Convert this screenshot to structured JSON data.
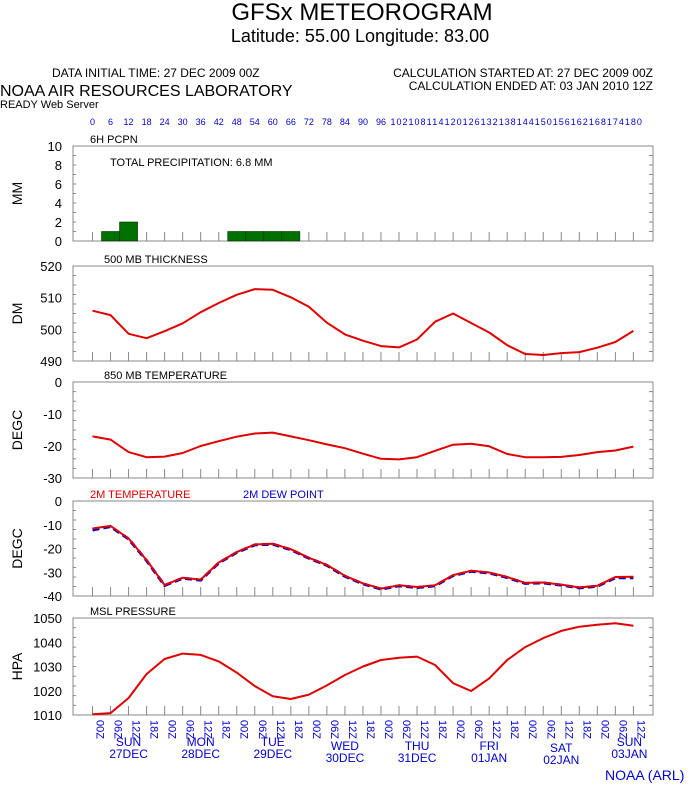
{
  "header": {
    "title": "GFSx METEOROGRAM",
    "location": "Latitude: 55.00 Longitude:  83.00",
    "data_initial_time": "DATA INITIAL TIME: 27 DEC 2009 00Z",
    "lab": "NOAA AIR RESOURCES LABORATORY",
    "server": "READY Web Server",
    "calc_started": "CALCULATION STARTED AT: 27 DEC 2009 00Z",
    "calc_ended": "CALCULATION ENDED AT: 03 JAN 2010 12Z",
    "footer": "NOAA (ARL)"
  },
  "colors": {
    "temp": "#e00000",
    "dew": "#0000cc",
    "precip": "#007000",
    "axis_label": "#0000cc"
  },
  "chart_data": {
    "type": "line",
    "forecast_hours": [
      0,
      6,
      12,
      18,
      24,
      30,
      36,
      42,
      48,
      54,
      60,
      66,
      72,
      78,
      84,
      90,
      96,
      102,
      108,
      114,
      120,
      126,
      132,
      138,
      144,
      150,
      156,
      162,
      168,
      174,
      180
    ],
    "hour_labels": [
      "0",
      "6",
      "12",
      "18",
      "24",
      "30",
      "36",
      "42",
      "48",
      "54",
      "60",
      "66",
      "72",
      "78",
      "84",
      "90",
      "96",
      "102",
      "108",
      "114",
      "120",
      "126",
      "132",
      "138",
      "144",
      "150",
      "156",
      "162",
      "168",
      "174",
      "180"
    ],
    "time_labels": [
      "00Z",
      "06Z",
      "12Z",
      "18Z",
      "00Z",
      "06Z",
      "12Z",
      "18Z",
      "00Z",
      "06Z",
      "12Z",
      "18Z",
      "00Z",
      "06Z",
      "12Z",
      "18Z",
      "00Z",
      "06Z",
      "12Z",
      "18Z",
      "00Z",
      "06Z",
      "12Z",
      "18Z",
      "00Z",
      "06Z",
      "12Z",
      "18Z",
      "00Z",
      "06Z",
      "12Z"
    ],
    "days": [
      {
        "dow": "SUN",
        "date": "27DEC"
      },
      {
        "dow": "MON",
        "date": "28DEC"
      },
      {
        "dow": "TUE",
        "date": "29DEC"
      },
      {
        "dow": "WED",
        "date": "30DEC"
      },
      {
        "dow": "THU",
        "date": "31DEC"
      },
      {
        "dow": "FRI",
        "date": "01JAN"
      },
      {
        "dow": "SAT",
        "date": "02JAN"
      },
      {
        "dow": "SUN",
        "date": "03JAN"
      }
    ],
    "panels": [
      {
        "id": "precip",
        "title": "6H PCPN",
        "ylabel": "MM",
        "type": "bar",
        "ylim": [
          0,
          10
        ],
        "yticks": [
          "0",
          "2",
          "4",
          "6",
          "8",
          "10"
        ],
        "ytick_values": [
          0,
          2,
          4,
          6,
          8,
          10
        ],
        "annotation": "TOTAL PRECIPITATION:   6.8 MM",
        "bars": [
          {
            "hour": 6,
            "value": 0.9
          },
          {
            "hour": 12,
            "value": 1.9
          },
          {
            "hour": 48,
            "value": 1.0
          },
          {
            "hour": 54,
            "value": 1.0
          },
          {
            "hour": 60,
            "value": 1.0
          },
          {
            "hour": 66,
            "value": 1.0
          }
        ]
      },
      {
        "id": "thickness",
        "title": "500 MB  THICKNESS",
        "ylabel": "DM",
        "type": "line",
        "ylim": [
          490,
          520
        ],
        "yticks": [
          "490",
          "500",
          "510",
          "520"
        ],
        "ytick_values": [
          490,
          500,
          510,
          520
        ],
        "series": [
          {
            "name": "500 MB THICKNESS",
            "color": "#e00000",
            "values": [
              505.9,
              504.5,
              498.6,
              497.2,
              499.4,
              501.9,
              505.4,
              508.3,
              510.9,
              512.7,
              512.5,
              510.1,
              507.1,
              502.1,
              498.4,
              496.4,
              494.7,
              494.3,
              496.8,
              502.4,
              505.0,
              502.0,
              499.0,
              495.0,
              492.2,
              491.9,
              492.5,
              492.8,
              494.2,
              496.0,
              499.5
            ]
          }
        ]
      },
      {
        "id": "t850",
        "title": "850 MB  TEMPERATURE",
        "ylabel": "DEGC",
        "type": "line",
        "ylim": [
          -30,
          0
        ],
        "yticks": [
          "-30",
          "-20",
          "-10",
          "0"
        ],
        "ytick_values": [
          -30,
          -20,
          -10,
          0
        ],
        "series": [
          {
            "name": "850 MB TEMPERATURE",
            "color": "#e00000",
            "values": [
              -17.0,
              -18.0,
              -21.9,
              -23.5,
              -23.3,
              -22.2,
              -20.0,
              -18.5,
              -17.1,
              -16.1,
              -15.8,
              -17.0,
              -18.2,
              -19.5,
              -20.7,
              -22.4,
              -24.0,
              -24.2,
              -23.5,
              -21.5,
              -19.6,
              -19.3,
              -20.1,
              -22.5,
              -23.5,
              -23.5,
              -23.4,
              -22.8,
              -21.9,
              -21.4,
              -20.2
            ]
          }
        ]
      },
      {
        "id": "t2m",
        "title": "2M TEMPERATURE",
        "title2": "2M  DEW POINT",
        "ylabel": "DEGC",
        "type": "line",
        "ylim": [
          -40,
          0
        ],
        "yticks": [
          "-40",
          "-30",
          "-20",
          "-10",
          "0"
        ],
        "ytick_values": [
          -40,
          -30,
          -20,
          -10,
          0
        ],
        "series": [
          {
            "name": "2M DEW POINT",
            "color": "#0000cc",
            "dashed": true,
            "values": [
              -12.2,
              -10.8,
              -16.0,
              -25.1,
              -35.6,
              -32.5,
              -33.3,
              -26.1,
              -21.7,
              -18.5,
              -18.2,
              -20.5,
              -24.1,
              -27.1,
              -31.7,
              -34.9,
              -37.1,
              -35.7,
              -36.4,
              -35.7,
              -31.4,
              -29.6,
              -30.3,
              -32.2,
              -34.7,
              -34.5,
              -35.4,
              -36.6,
              -35.9,
              -32.3,
              -32.3
            ]
          },
          {
            "name": "2M TEMPERATURE",
            "color": "#e00000",
            "values": [
              -11.6,
              -10.5,
              -15.8,
              -24.9,
              -35.4,
              -32.3,
              -33.1,
              -25.9,
              -21.5,
              -18.3,
              -18.0,
              -20.3,
              -23.9,
              -26.9,
              -31.5,
              -34.7,
              -36.9,
              -35.5,
              -36.2,
              -35.5,
              -31.2,
              -29.4,
              -30.1,
              -32.0,
              -34.5,
              -34.3,
              -35.2,
              -36.4,
              -35.7,
              -32.0,
              -31.9
            ]
          }
        ]
      },
      {
        "id": "mslp",
        "title": "MSL PRESSURE",
        "ylabel": "HPA",
        "type": "line",
        "ylim": [
          1010,
          1050
        ],
        "yticks": [
          "1010",
          "1020",
          "1030",
          "1040",
          "1050"
        ],
        "ytick_values": [
          1010,
          1020,
          1030,
          1040,
          1050
        ],
        "series": [
          {
            "name": "MSL PRESSURE",
            "color": "#e00000",
            "values": [
              1010.3,
              1010.8,
              1017.0,
              1026.9,
              1033.1,
              1035.3,
              1034.8,
              1032.1,
              1027.5,
              1021.9,
              1017.7,
              1016.6,
              1018.4,
              1022.2,
              1026.5,
              1030.0,
              1032.7,
              1033.6,
              1034.1,
              1030.6,
              1023.1,
              1019.9,
              1025.1,
              1032.7,
              1038.0,
              1041.7,
              1044.7,
              1046.4,
              1047.2,
              1047.8,
              1046.8
            ]
          }
        ]
      }
    ]
  }
}
